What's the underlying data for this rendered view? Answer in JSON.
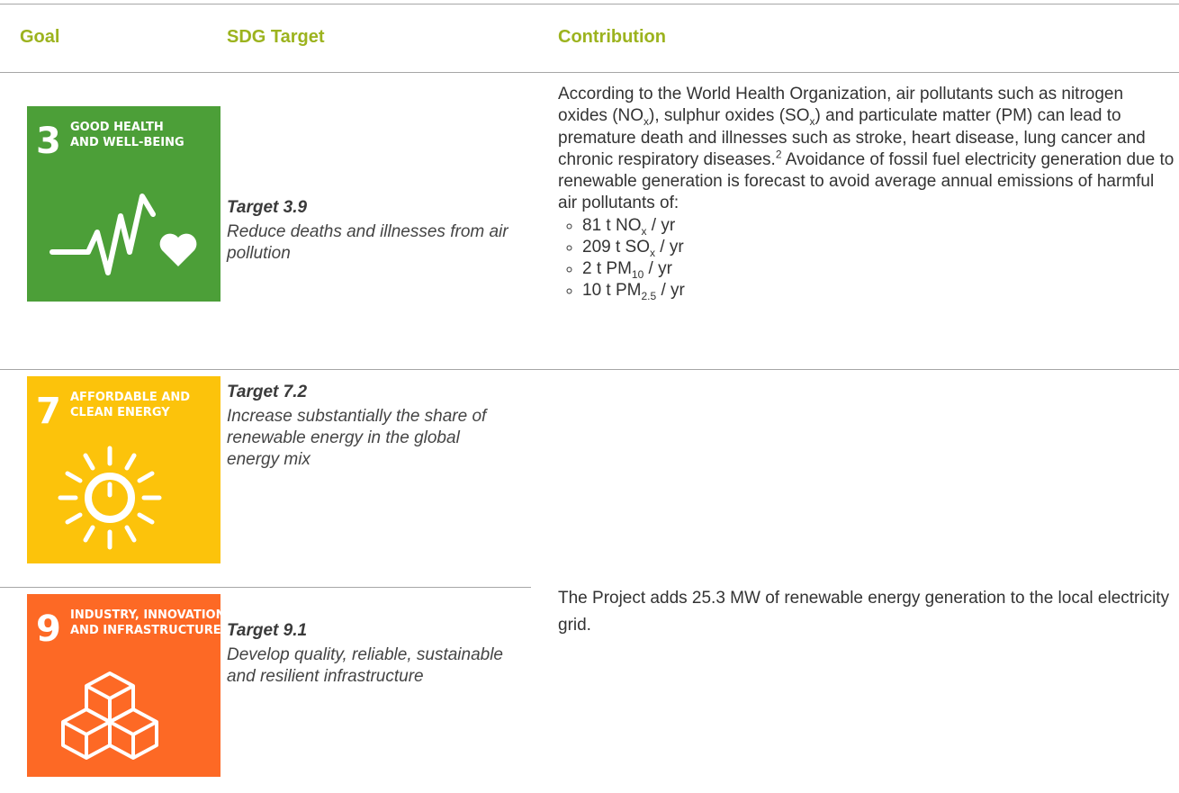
{
  "table": {
    "header": [
      "Goal",
      "SDG Target",
      "Contribution"
    ],
    "rows": [
      {
        "goal": {
          "number": "3",
          "label": [
            "GOOD HEALTH",
            "AND WELL-BEING"
          ]
        },
        "target": {
          "title": "Target 3.9",
          "description": "Reduce deaths and illnesses from air pollution"
        },
        "contribution": {
          "paragraph": [
            "According to the World Health Organization, air pollutants such as nitrogen oxides (NO",
            {
              "sub": "x"
            },
            "), sulphur oxides (SO",
            {
              "sub": "x"
            },
            ") and particulate matter (PM) can lead to premature death and illnesses such as stroke, heart disease, lung cancer and chronic respiratory diseases.",
            {
              "sup": "2"
            },
            "  Avoidance of fossil fuel electricity generation due to renewable generation is forecast to avoid average annual emissions of harmful air pollutants of:"
          ],
          "bullets": [
            [
              "81 t NO",
              {
                "sub": "x"
              },
              " / yr"
            ],
            [
              "209 t SO",
              {
                "sub": "x"
              },
              " / yr"
            ],
            [
              "2 t PM",
              {
                "sub": "10"
              },
              " / yr"
            ],
            [
              "10 t PM",
              {
                "sub": "2.5"
              },
              " / yr"
            ]
          ]
        }
      },
      {
        "goal": {
          "number": "7",
          "label": [
            "AFFORDABLE AND",
            "CLEAN ENERGY"
          ]
        },
        "target": {
          "title": "Target 7.2",
          "description": "Increase substantially the share of renewable energy in the global energy mix"
        }
      },
      {
        "goal": {
          "number": "9",
          "label": [
            "INDUSTRY, INNOVATION",
            "AND INFRASTRUCTURE"
          ]
        },
        "target": {
          "title": "Target 9.1",
          "description": "Develop quality, reliable, sustainable and resilient infrastructure"
        }
      }
    ],
    "shared_contribution": "The Project adds 25.3 MW of renewable energy generation to the local electricity grid."
  }
}
